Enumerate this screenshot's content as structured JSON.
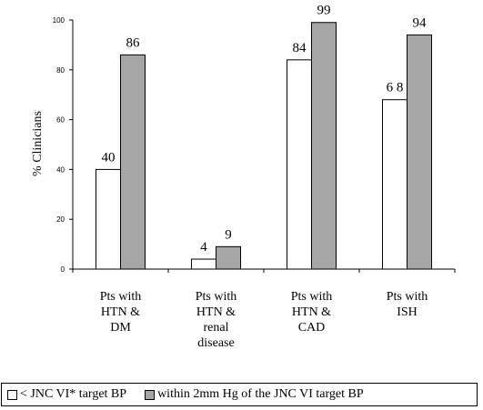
{
  "chart_data": {
    "type": "bar",
    "ylabel": "% Clinicians",
    "ylim": [
      0,
      100
    ],
    "yticks": [
      0,
      20,
      40,
      60,
      80,
      100
    ],
    "grid": false,
    "legend_position": "bottom",
    "categories": [
      [
        "Pts with",
        "HTN &",
        "DM"
      ],
      [
        "Pts with",
        "HTN &",
        "renal",
        "disease"
      ],
      [
        "Pts with",
        "HTN &",
        "CAD"
      ],
      [
        "Pts with",
        "ISH"
      ]
    ],
    "series": [
      {
        "name": "< JNC VI* target BP",
        "color": "#ffffff",
        "values": [
          40,
          4,
          84,
          68
        ],
        "labels": [
          "40",
          "4",
          "84",
          "6 8"
        ]
      },
      {
        "name": "within 2mm Hg of the JNC VI target BP",
        "color": "#a6a6a6",
        "values": [
          86,
          9,
          99,
          94
        ],
        "labels": [
          "86",
          "9",
          "99",
          "94"
        ]
      }
    ]
  }
}
